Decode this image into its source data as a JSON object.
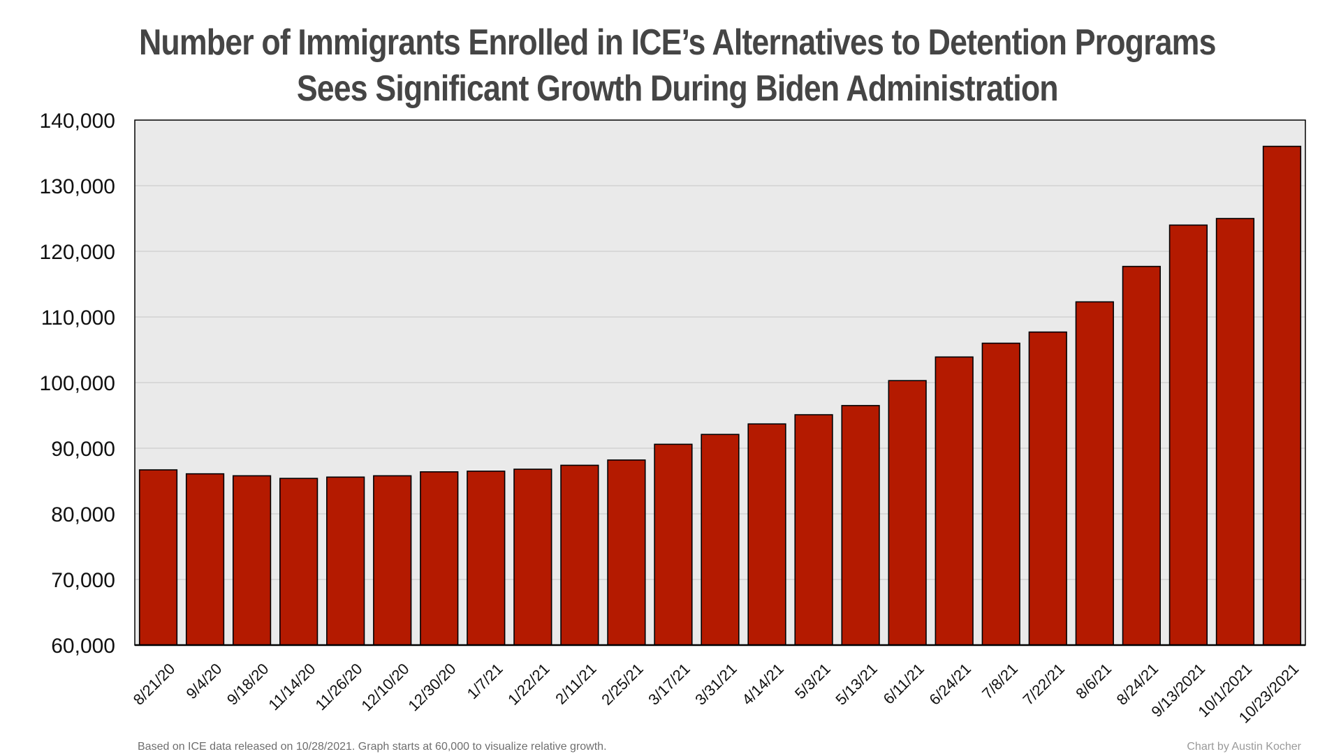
{
  "chart_data": {
    "type": "bar",
    "title_lines": [
      "Number of Immigrants Enrolled in ICE’s Alternatives to Detention Programs",
      "Sees Significant Growth During Biden Administration"
    ],
    "xlabel": "",
    "ylabel": "",
    "ylim": [
      60000,
      140000
    ],
    "yticks": [
      60000,
      70000,
      80000,
      90000,
      100000,
      110000,
      120000,
      130000,
      140000
    ],
    "ytick_labels": [
      "60,000",
      "70,000",
      "80,000",
      "90,000",
      "100,000",
      "110,000",
      "120,000",
      "130,000",
      "140,000"
    ],
    "grid": "horizontal",
    "legend": "none",
    "categories": [
      "8/21/20",
      "9/4/20",
      "9/18/20",
      "11/14/20",
      "11/26/20",
      "12/10/20",
      "12/30/20",
      "1/7/21",
      "1/22/21",
      "2/11/21",
      "2/25/21",
      "3/17/21",
      "3/31/21",
      "4/14/21",
      "5/3/21",
      "5/13/21",
      "6/11/21",
      "6/24/21",
      "7/8/21",
      "7/22/21",
      "8/6/21",
      "8/24/21",
      "9/13/2021",
      "10/1/2021",
      "10/23/2021"
    ],
    "values": [
      86700,
      86100,
      85800,
      85400,
      85600,
      85800,
      86400,
      86500,
      86800,
      87400,
      88200,
      90600,
      92100,
      93700,
      95100,
      96500,
      100300,
      103900,
      106000,
      107700,
      112300,
      117700,
      124000,
      125000,
      136000
    ],
    "colors": {
      "bar": "#b41a00",
      "bar_edge": "#000000",
      "plot_bg": "#eaeaea",
      "grid": "#c6c6c6",
      "title": "#454545"
    }
  },
  "footer": {
    "source_note": "Based on ICE data released on 10/28/2021. Graph starts at 60,000 to visualize relative growth.",
    "credit": "Chart by Austin Kocher"
  }
}
